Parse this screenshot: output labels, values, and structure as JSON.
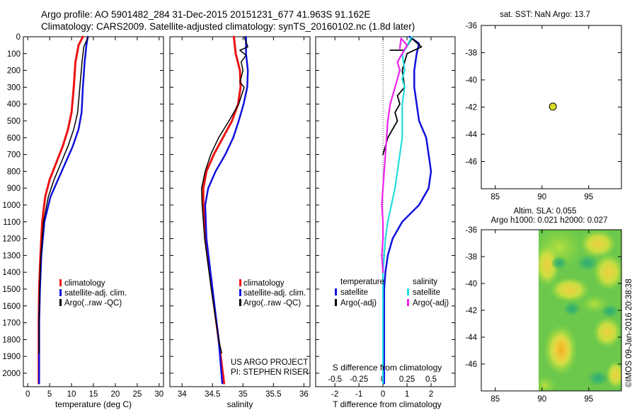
{
  "title": {
    "line1": "Argo profile: AO 5901482_284 31-Dec-2015 20151231_677 41.963S 91.162E",
    "line2": "Climatology: CARS2009. Satellite-adjusted climatology: synTS_20160102.nc (1.8d later)"
  },
  "colors": {
    "climatology": "#ee1111",
    "satellite": "#1010dd",
    "argo": "#000000",
    "s_satellite": "#22dddd",
    "s_argo": "#ee22ee",
    "marker": "#d8dd22"
  },
  "depth_axis": {
    "range": [
      0,
      2080
    ],
    "ticks": [
      0,
      100,
      200,
      300,
      400,
      500,
      600,
      700,
      800,
      900,
      1000,
      1100,
      1200,
      1300,
      1400,
      1500,
      1600,
      1700,
      1800,
      1900,
      2000
    ]
  },
  "chart_data": [
    {
      "type": "line",
      "name": "temperature-panel",
      "xlabel": "temperature (deg C)",
      "xlim": [
        -1,
        31
      ],
      "xticks": [
        0,
        5,
        10,
        15,
        20,
        25,
        30
      ],
      "ylim": [
        0,
        2080
      ],
      "series": [
        {
          "name": "climatology",
          "color_key": "climatology",
          "width": 3,
          "points": [
            [
              12.6,
              0
            ],
            [
              11.6,
              50
            ],
            [
              10.9,
              150
            ],
            [
              10.5,
              300
            ],
            [
              10.0,
              450
            ],
            [
              9.2,
              550
            ],
            [
              8.0,
              650
            ],
            [
              6.5,
              750
            ],
            [
              5.0,
              850
            ],
            [
              4.0,
              950
            ],
            [
              3.3,
              1100
            ],
            [
              2.9,
              1300
            ],
            [
              2.6,
              1500
            ],
            [
              2.5,
              1700
            ],
            [
              2.5,
              1900
            ],
            [
              2.5,
              2060
            ]
          ]
        },
        {
          "name": "satellite-adj. clim.",
          "color_key": "satellite",
          "width": 2.5,
          "points": [
            [
              13.7,
              0
            ],
            [
              13.4,
              50
            ],
            [
              13.0,
              150
            ],
            [
              12.6,
              300
            ],
            [
              12.3,
              450
            ],
            [
              11.6,
              550
            ],
            [
              10.3,
              650
            ],
            [
              8.6,
              750
            ],
            [
              6.9,
              850
            ],
            [
              5.2,
              950
            ],
            [
              3.8,
              1100
            ],
            [
              3.1,
              1300
            ],
            [
              2.8,
              1500
            ],
            [
              2.6,
              1700
            ],
            [
              2.6,
              1900
            ],
            [
              2.6,
              2060
            ]
          ]
        },
        {
          "name": "Argo(..raw -QC)",
          "color_key": "argo",
          "width": 1.5,
          "points": [
            [
              13.8,
              0
            ],
            [
              12.8,
              60
            ],
            [
              12.4,
              150
            ],
            [
              11.9,
              300
            ],
            [
              11.4,
              450
            ],
            [
              10.5,
              550
            ],
            [
              9.2,
              650
            ],
            [
              7.6,
              750
            ],
            [
              6.0,
              850
            ],
            [
              4.7,
              950
            ],
            [
              3.6,
              1100
            ],
            [
              3.0,
              1300
            ],
            [
              2.7,
              1500
            ],
            [
              2.6,
              1700
            ],
            [
              2.6,
              1880
            ]
          ]
        }
      ],
      "legend": {
        "position": "bottom-right",
        "items": [
          "climatology",
          "satellite-adj. clim.",
          "Argo(..raw -QC)"
        ]
      }
    },
    {
      "type": "line",
      "name": "salinity-panel",
      "xlabel": "salinity",
      "xlim": [
        33.8,
        36.1
      ],
      "xticks": [
        34,
        34.5,
        35,
        35.5,
        36
      ],
      "xtick_labels": [
        "34",
        "34.5",
        "35",
        "35.5",
        "36"
      ],
      "ylim": [
        0,
        2080
      ],
      "series": [
        {
          "name": "climatology",
          "color_key": "climatology",
          "width": 3,
          "points": [
            [
              34.85,
              0
            ],
            [
              34.88,
              100
            ],
            [
              34.95,
              200
            ],
            [
              34.96,
              300
            ],
            [
              34.92,
              400
            ],
            [
              34.82,
              500
            ],
            [
              34.67,
              600
            ],
            [
              34.52,
              700
            ],
            [
              34.4,
              800
            ],
            [
              34.35,
              900
            ],
            [
              34.35,
              1000
            ],
            [
              34.39,
              1200
            ],
            [
              34.49,
              1500
            ],
            [
              34.6,
              1800
            ],
            [
              34.69,
              2060
            ]
          ]
        },
        {
          "name": "satellite-adj. clim.",
          "color_key": "satellite",
          "width": 2.5,
          "points": [
            [
              35.05,
              0
            ],
            [
              35.05,
              100
            ],
            [
              35.08,
              200
            ],
            [
              35.07,
              300
            ],
            [
              35.01,
              400
            ],
            [
              34.93,
              500
            ],
            [
              34.84,
              600
            ],
            [
              34.71,
              700
            ],
            [
              34.55,
              800
            ],
            [
              34.43,
              900
            ],
            [
              34.38,
              1000
            ],
            [
              34.4,
              1200
            ],
            [
              34.5,
              1500
            ],
            [
              34.6,
              1800
            ],
            [
              34.66,
              2060
            ]
          ]
        },
        {
          "name": "Argo(..raw -QC)",
          "color_key": "argo",
          "width": 1.5,
          "points": [
            [
              35.02,
              0
            ],
            [
              35.08,
              60
            ],
            [
              34.95,
              80
            ],
            [
              35.05,
              110
            ],
            [
              34.97,
              150
            ],
            [
              35.0,
              200
            ],
            [
              34.95,
              270
            ],
            [
              35.02,
              300
            ],
            [
              34.93,
              400
            ],
            [
              34.77,
              500
            ],
            [
              34.6,
              600
            ],
            [
              34.47,
              700
            ],
            [
              34.38,
              800
            ],
            [
              34.32,
              900
            ],
            [
              34.33,
              1000
            ],
            [
              34.37,
              1200
            ],
            [
              34.48,
              1500
            ],
            [
              34.6,
              1800
            ],
            [
              34.65,
              1880
            ]
          ]
        }
      ],
      "legend": {
        "position": "bottom-right",
        "items": [
          "climatology",
          "satellite-adj. clim.",
          "Argo(..raw -QC)"
        ]
      }
    },
    {
      "type": "line",
      "name": "difference-panel",
      "xlabel": "T difference from climatology",
      "xlim": [
        -2.8,
        3.0
      ],
      "xticks": [
        -2,
        -1,
        0,
        1,
        2
      ],
      "xtick_labels": [
        "-2",
        "-1",
        "0",
        "1",
        "2"
      ],
      "top_label": "S difference from climatology",
      "s_ticks": [
        -2,
        -1,
        0,
        1,
        2
      ],
      "s_tick_labels": [
        "-0.5",
        "-0.25",
        "0",
        "0.25",
        "0.5"
      ],
      "ylim": [
        0,
        2080
      ],
      "series": [
        {
          "name": "temperature satellite",
          "color_key": "satellite",
          "width": 2.5,
          "points": [
            [
              1.1,
              0
            ],
            [
              1.5,
              40
            ],
            [
              1.4,
              100
            ],
            [
              1.3,
              200
            ],
            [
              1.3,
              300
            ],
            [
              1.4,
              400
            ],
            [
              1.5,
              500
            ],
            [
              1.8,
              600
            ],
            [
              1.9,
              700
            ],
            [
              2.0,
              800
            ],
            [
              1.9,
              900
            ],
            [
              1.5,
              1000
            ],
            [
              0.8,
              1100
            ],
            [
              0.4,
              1200
            ],
            [
              0.2,
              1300
            ],
            [
              0.1,
              1400
            ],
            [
              0.05,
              1500
            ],
            [
              0.05,
              1600
            ],
            [
              0.05,
              1800
            ],
            [
              0.05,
              2060
            ]
          ]
        },
        {
          "name": "temperature Argo(-adj)",
          "color_key": "argo",
          "width": 1.8,
          "points": [
            [
              0.3,
              80
            ],
            [
              0.9,
              80
            ],
            [
              1.2,
              10
            ],
            [
              1.6,
              60
            ],
            [
              1.0,
              100
            ],
            [
              0.9,
              150
            ],
            [
              0.8,
              200
            ],
            [
              0.9,
              300
            ],
            [
              0.6,
              350
            ],
            [
              0.7,
              400
            ],
            [
              0.5,
              450
            ],
            [
              0.6,
              500
            ],
            [
              0.4,
              550
            ],
            [
              0.2,
              600
            ],
            [
              0.1,
              650
            ],
            [
              0.0,
              700
            ]
          ]
        },
        {
          "name": "salinity satellite",
          "color_key": "s_satellite",
          "width": 2.2,
          "points": [
            [
              1.2,
              0
            ],
            [
              0.9,
              80
            ],
            [
              0.8,
              100
            ],
            [
              0.9,
              200
            ],
            [
              0.8,
              250
            ],
            [
              0.9,
              300
            ],
            [
              0.8,
              400
            ],
            [
              0.8,
              500
            ],
            [
              0.8,
              600
            ],
            [
              0.7,
              700
            ],
            [
              0.6,
              800
            ],
            [
              0.5,
              900
            ],
            [
              0.35,
              1000
            ],
            [
              0.2,
              1100
            ],
            [
              0.1,
              1200
            ],
            [
              0.05,
              1300
            ],
            [
              0.0,
              1400
            ],
            [
              0.0,
              1600
            ],
            [
              0.0,
              1800
            ],
            [
              0.0,
              2060
            ]
          ]
        },
        {
          "name": "salinity Argo(-adj)",
          "color_key": "s_argo",
          "width": 2.2,
          "points": [
            [
              0.7,
              70
            ],
            [
              0.75,
              10
            ],
            [
              1.0,
              50
            ],
            [
              0.8,
              100
            ],
            [
              0.6,
              150
            ],
            [
              0.7,
              200
            ],
            [
              0.6,
              250
            ],
            [
              0.5,
              300
            ],
            [
              0.4,
              350
            ],
            [
              0.3,
              400
            ],
            [
              0.2,
              500
            ],
            [
              0.15,
              600
            ],
            [
              0.1,
              700
            ],
            [
              0.05,
              800
            ],
            [
              0.0,
              900
            ],
            [
              -0.05,
              1000
            ],
            [
              0.0,
              1100
            ],
            [
              0.0,
              1200
            ],
            [
              -0.05,
              1300
            ],
            [
              0.0,
              1400
            ]
          ]
        }
      ],
      "legend": {
        "position": "bottom",
        "groups": [
          {
            "title": "temperature",
            "items": [
              "satellite",
              "Argo(-adj)"
            ]
          },
          {
            "title": "salinity",
            "items": [
              "satellite",
              "Argo(-adj)"
            ]
          }
        ]
      }
    },
    {
      "type": "scatter",
      "name": "sst-map",
      "title": "sat. SST: NaN  Argo: 13.7",
      "xlim": [
        83.5,
        98.5
      ],
      "ylim": [
        -48,
        -36
      ],
      "xticks": [
        85,
        90,
        95
      ],
      "yticks": [
        -36,
        -38,
        -40,
        -42,
        -44,
        -46
      ],
      "points": [
        {
          "lon": 91.162,
          "lat": -41.963
        }
      ]
    },
    {
      "type": "heatmap",
      "name": "sla-map",
      "title_line1": "Altim. SLA: 0.055",
      "title_line2": "Argo h1000: 0.021  h2000: 0.027",
      "xlim": [
        83.5,
        98.5
      ],
      "ylim": [
        -48,
        -36
      ],
      "xticks": [
        85,
        90,
        95
      ],
      "yticks": [
        -36,
        -38,
        -40,
        -42,
        -44,
        -46
      ],
      "data_region": {
        "lon": [
          90,
          98.5
        ],
        "lat": [
          -48,
          -36
        ]
      }
    }
  ],
  "legend_labels": {
    "climatology": "climatology",
    "satellite_clim": "satellite-adj. clim.",
    "argo_raw": "Argo(..raw -QC)",
    "temperature": "temperature",
    "salinity": "salinity",
    "satellite": "satellite",
    "argo_adj": "Argo(-adj)"
  },
  "credits": {
    "project": "US ARGO PROJECT",
    "pi": "PI: STEPHEN RISER",
    "stamp": "©IMOS 09-Jan-2016 20:38:38"
  }
}
